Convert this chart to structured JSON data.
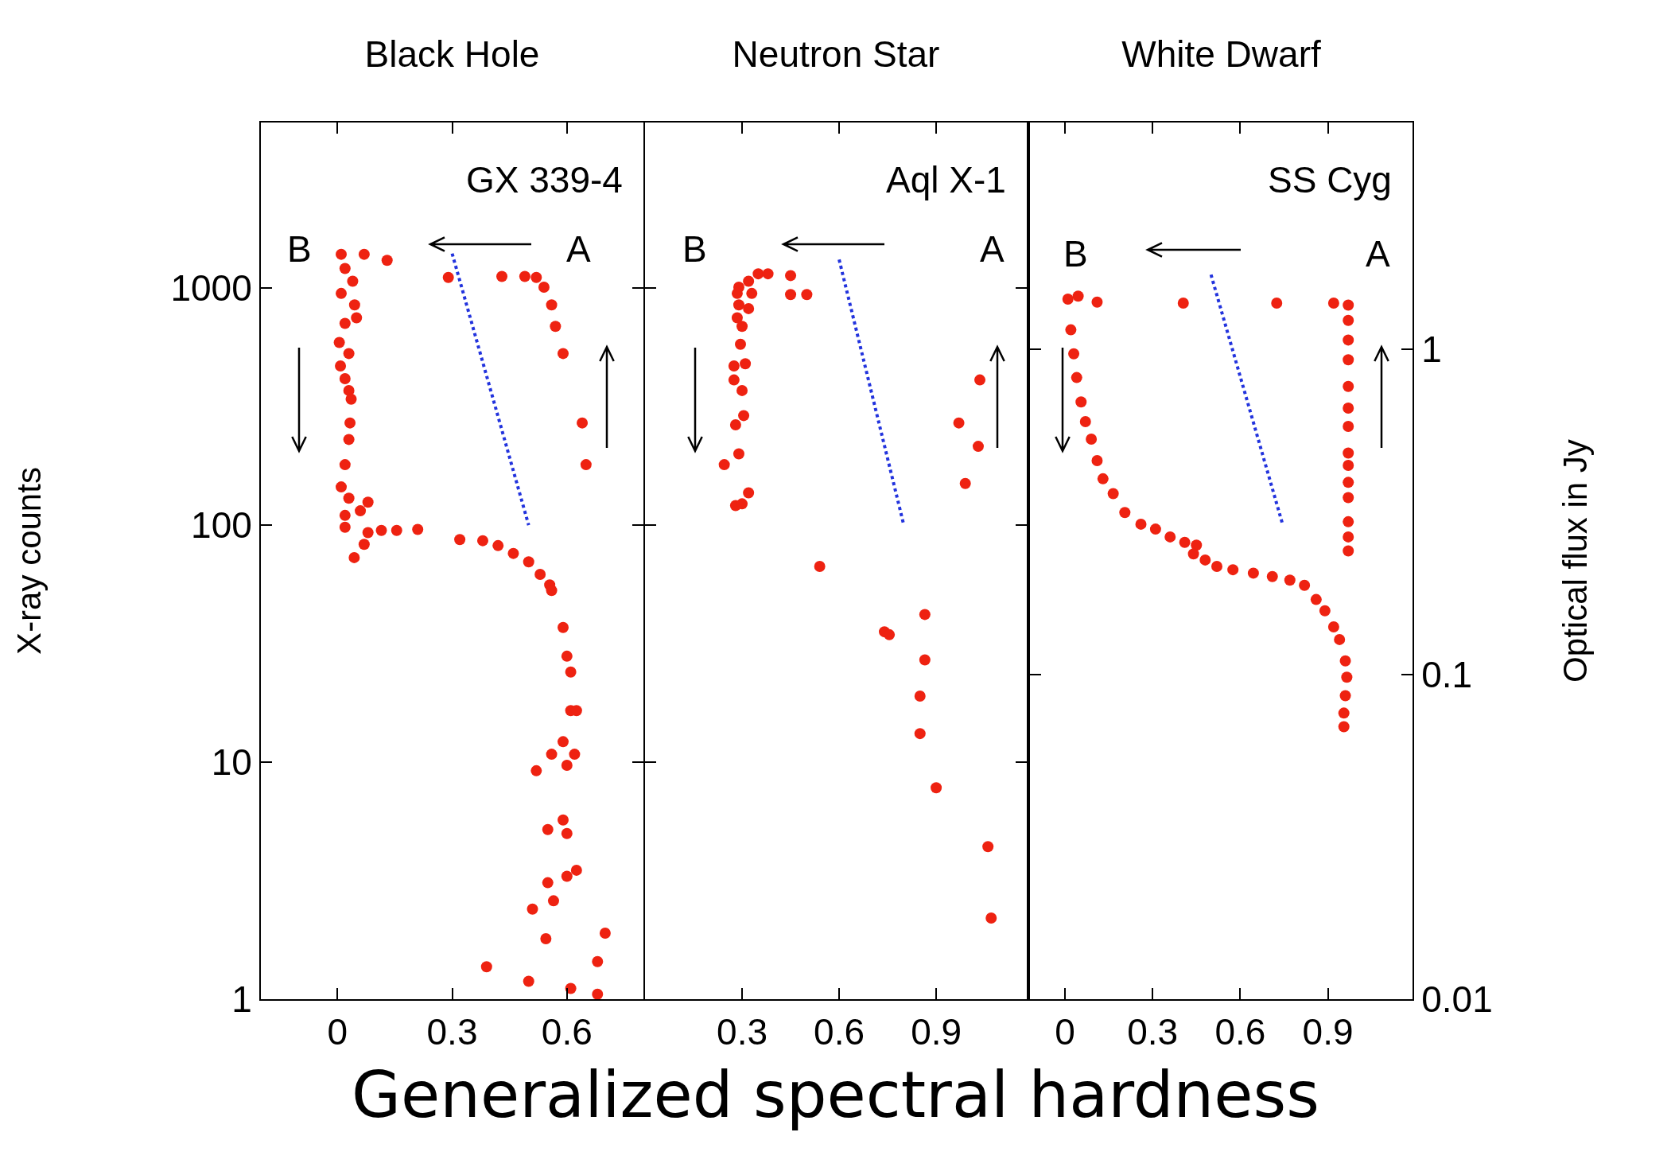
{
  "chart_data": [
    {
      "type": "scatter",
      "title": "Black Hole",
      "ylabel": "X-ray counts",
      "log": "y",
      "grid": false,
      "xlim": [
        -0.2,
        0.8
      ],
      "xticks": [
        0,
        0.3,
        0.6
      ],
      "ylim": [
        1,
        5000
      ],
      "yticks": [
        1,
        10,
        100,
        1000
      ],
      "annotations": [
        "GX 339-4",
        "B",
        "A"
      ],
      "series": [
        {
          "color": "#ee2211",
          "marker": "circle",
          "x": [
            0.01,
            0.07,
            0.13,
            0.29,
            0.43,
            0.49,
            0.52,
            0.54,
            0.56,
            0.57,
            0.59,
            0.64,
            0.65,
            0.02,
            0.04,
            0.01,
            0.045,
            0.02,
            0.05,
            0.005,
            0.03,
            0.008,
            0.02,
            0.03,
            0.036,
            0.033,
            0.03,
            0.02,
            0.01,
            0.03,
            0.02,
            0.02,
            0.06,
            0.08,
            0.08,
            0.115,
            0.155,
            0.07,
            0.044,
            0.21,
            0.32,
            0.38,
            0.42,
            0.46,
            0.5,
            0.53,
            0.555,
            0.56,
            0.59,
            0.6,
            0.61,
            0.61,
            0.625,
            0.59,
            0.56,
            0.62,
            0.6,
            0.52,
            0.59,
            0.55,
            0.6,
            0.625,
            0.6,
            0.55,
            0.565,
            0.51,
            0.545,
            0.39,
            0.5,
            0.7,
            0.68,
            0.61,
            0.68
          ],
          "values": [
            1390,
            1390,
            1310,
            1110,
            1120,
            1120,
            1110,
            1010,
            850,
            690,
            530,
            270,
            180,
            1210,
            1070,
            950,
            850,
            710,
            750,
            590,
            530,
            470,
            415,
            370,
            340,
            270,
            230,
            180,
            145,
            130,
            110,
            98,
            115,
            125,
            93,
            95,
            95,
            83,
            73,
            96,
            87,
            86,
            82,
            76,
            70,
            62,
            56,
            53,
            37,
            28,
            24,
            16.5,
            16.5,
            12.2,
            10.8,
            10.8,
            9.7,
            9.2,
            5.7,
            5.2,
            5.0,
            3.5,
            3.3,
            3.1,
            2.6,
            2.4,
            1.8,
            1.37,
            1.19,
            1.9,
            1.44,
            1.11,
            1.05
          ]
        },
        {
          "type": "line",
          "marker": "none",
          "line_style": "dotted",
          "color": "#2233dd",
          "x": [
            0.3,
            0.5
          ],
          "values": [
            1400,
            100
          ]
        }
      ]
    },
    {
      "type": "scatter",
      "title": "Neutron Star",
      "xlabel": "Generalized spectral hardness",
      "log": "y",
      "grid": false,
      "tick_labels": "x",
      "xlim": [
        0,
        1.18
      ],
      "xticks": [
        0.3,
        0.6,
        0.9
      ],
      "ylim": [
        1,
        5000
      ],
      "yticks": [
        1,
        10,
        100,
        1000
      ],
      "annotations": [
        "Aql X-1",
        "B",
        "A"
      ],
      "series": [
        {
          "color": "#ee2211",
          "marker": "circle",
          "x": [
            0.35,
            0.38,
            0.45,
            0.45,
            0.5,
            0.29,
            0.32,
            0.285,
            0.33,
            0.29,
            0.32,
            0.285,
            0.3,
            0.295,
            0.275,
            0.31,
            0.275,
            0.3,
            0.305,
            0.28,
            0.29,
            0.245,
            0.32,
            0.28,
            0.3,
            0.54,
            0.74,
            0.755,
            0.865,
            0.865,
            0.85,
            0.85,
            0.9,
            1.06,
            1.07,
            1.035,
            0.97,
            1.03,
            0.99
          ],
          "values": [
            1150,
            1150,
            1130,
            940,
            940,
            1010,
            1070,
            950,
            950,
            850,
            820,
            750,
            690,
            580,
            470,
            480,
            410,
            370,
            290,
            265,
            200,
            180,
            137,
            121,
            123,
            67,
            35.5,
            34.5,
            42,
            27,
            19,
            13.2,
            7.8,
            4.4,
            2.2,
            410,
            270,
            215,
            150
          ]
        },
        {
          "type": "line",
          "marker": "none",
          "line_style": "dotted",
          "color": "#2233dd",
          "x": [
            0.6,
            0.8
          ],
          "values": [
            1320,
            100
          ]
        }
      ]
    },
    {
      "type": "scatter",
      "title": "White Dwarf",
      "y2label": "Optical flux in Jy",
      "log": "y2",
      "grid": false,
      "xlim": [
        -0.12,
        1.19
      ],
      "xticks": [
        0,
        0.3,
        0.6,
        0.9
      ],
      "y2lim": [
        0.01,
        5
      ],
      "y2ticks": [
        0.01,
        0.1,
        1
      ],
      "annotations": [
        "SS Cyg",
        "B",
        "A"
      ],
      "series": [
        {
          "color": "#ee2211",
          "marker": "circle",
          "axis": "y2",
          "x": [
            0.045,
            0.11,
            0.405,
            0.725,
            0.92,
            0.97,
            0.97,
            0.97,
            0.97,
            0.97,
            0.97,
            0.97,
            0.97,
            0.97,
            0.97,
            0.97,
            0.97,
            0.97,
            0.97,
            0.01,
            0.02,
            0.03,
            0.04,
            0.055,
            0.07,
            0.09,
            0.11,
            0.13,
            0.165,
            0.205,
            0.26,
            0.31,
            0.36,
            0.41,
            0.45,
            0.44,
            0.48,
            0.52,
            0.575,
            0.645,
            0.71,
            0.77,
            0.82,
            0.86,
            0.89,
            0.92,
            0.94,
            0.96,
            0.965,
            0.96,
            0.955,
            0.955
          ],
          "values": [
            1.46,
            1.4,
            1.39,
            1.39,
            1.39,
            1.37,
            1.23,
            1.07,
            0.93,
            0.77,
            0.66,
            0.58,
            0.48,
            0.44,
            0.39,
            0.35,
            0.295,
            0.265,
            0.24,
            1.43,
            1.15,
            0.97,
            0.82,
            0.69,
            0.6,
            0.53,
            0.455,
            0.4,
            0.36,
            0.315,
            0.29,
            0.28,
            0.265,
            0.255,
            0.25,
            0.235,
            0.225,
            0.215,
            0.21,
            0.205,
            0.2,
            0.195,
            0.188,
            0.17,
            0.157,
            0.14,
            0.128,
            0.11,
            0.098,
            0.086,
            0.076,
            0.069
          ]
        },
        {
          "type": "line",
          "marker": "none",
          "line_style": "dotted",
          "color": "#2233dd",
          "axis": "y2",
          "x": [
            0.5,
            0.745
          ],
          "values": [
            1.7,
            0.29
          ]
        }
      ]
    }
  ]
}
